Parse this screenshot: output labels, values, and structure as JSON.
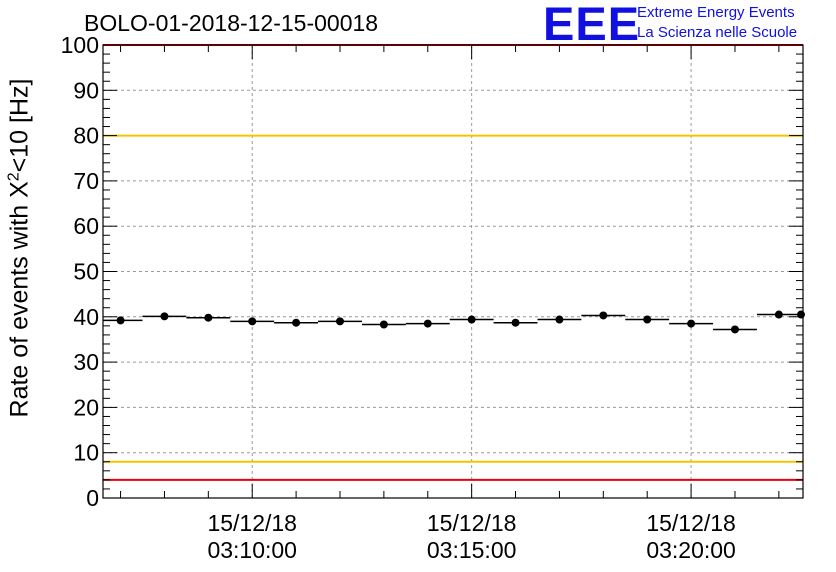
{
  "chart_data": {
    "type": "scatter",
    "title": "BOLO-01-2018-12-15-00018",
    "ylabel_parts": {
      "base": "Rate of events with X",
      "sup": "2",
      "tail": "<10 [Hz]"
    },
    "ylim": [
      0,
      100
    ],
    "yticks": [
      0,
      10,
      20,
      30,
      40,
      50,
      60,
      70,
      80,
      90,
      100
    ],
    "xlim_minutes": [
      6.6,
      22.55
    ],
    "xticks": [
      {
        "minutes": 10,
        "date": "15/12/18",
        "time": "03:10:00"
      },
      {
        "minutes": 15,
        "date": "15/12/18",
        "time": "03:15:00"
      },
      {
        "minutes": 20,
        "date": "15/12/18",
        "time": "03:20:00"
      }
    ],
    "bin_width_minutes": 1.0,
    "x": [
      "03:07:00",
      "03:08:00",
      "03:09:00",
      "03:10:00",
      "03:11:00",
      "03:12:00",
      "03:13:00",
      "03:14:00",
      "03:15:00",
      "03:16:00",
      "03:17:00",
      "03:18:00",
      "03:19:00",
      "03:20:00",
      "03:21:00",
      "03:22:00",
      "03:23:00"
    ],
    "x_minutes": [
      7.0,
      8.0,
      9.0,
      10.0,
      11.0,
      12.0,
      13.0,
      14.0,
      15.0,
      16.0,
      17.0,
      18.0,
      19.0,
      20.0,
      21.0,
      22.0,
      23.0
    ],
    "values": [
      39.2,
      40.1,
      39.8,
      39.0,
      38.7,
      39.0,
      38.3,
      38.5,
      39.4,
      38.7,
      39.4,
      40.3,
      39.4,
      38.5,
      37.2,
      40.5,
      40.5
    ],
    "reference_lines": [
      {
        "value": 100,
        "color": "#e8000b"
      },
      {
        "value": 80,
        "color": "#f5c400"
      },
      {
        "value": 8,
        "color": "#f5c400"
      },
      {
        "value": 4,
        "color": "#e8000b"
      }
    ],
    "grid": true,
    "marker_color": "#000000"
  },
  "logo": {
    "mark": "EEE",
    "line1": "Extreme Energy Events",
    "line2": "La Scienza nelle Scuole",
    "color": "#1010e0"
  }
}
